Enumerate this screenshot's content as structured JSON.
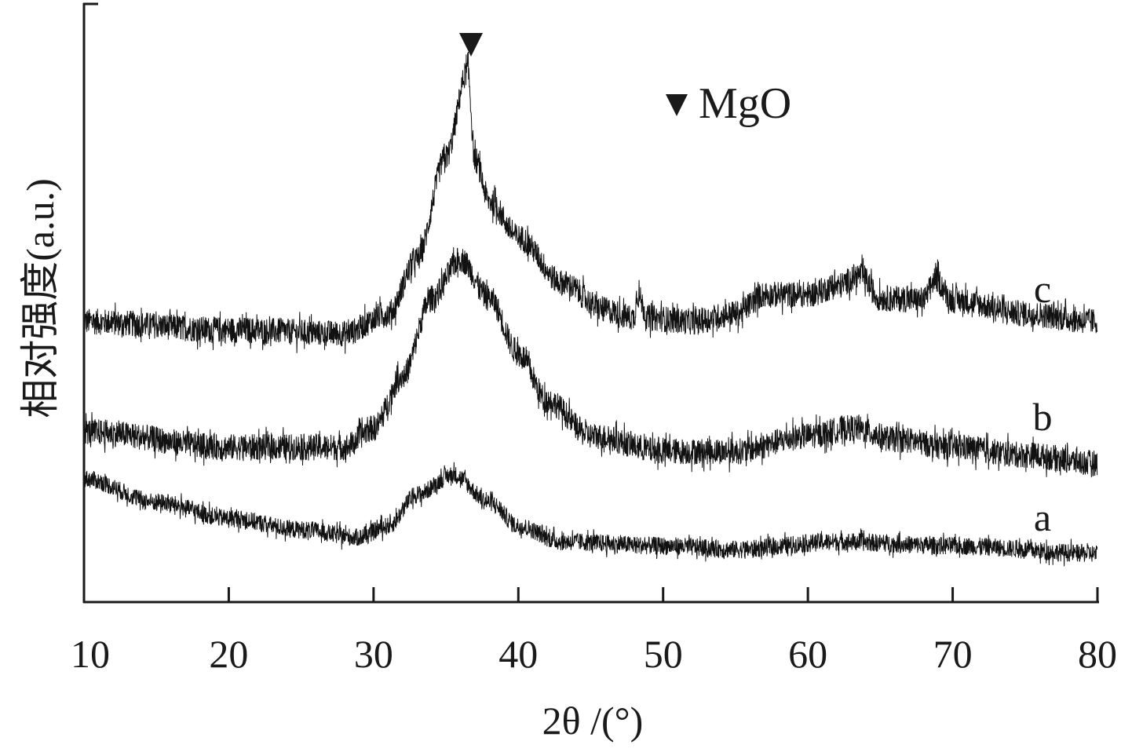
{
  "chart_data": {
    "type": "line",
    "title": "",
    "xlabel": "2θ /(°)",
    "ylabel": "相对强度(a.u.)",
    "xlim": [
      10,
      80
    ],
    "ylim": [
      0,
      100
    ],
    "x_ticks": [
      "10",
      "20",
      "30",
      "40",
      "50",
      "60",
      "70",
      "80"
    ],
    "grid": false,
    "legend": {
      "marker": "▼",
      "label": "MgO",
      "placement": "top-right"
    },
    "annotations": [
      {
        "marker": "▼",
        "x": 36.9,
        "label": "MgO peak"
      }
    ],
    "series": [
      {
        "name": "c",
        "noise": 2.2,
        "x": [
          10,
          20,
          28,
          31,
          33,
          35,
          36.5,
          37,
          38,
          40,
          43,
          46,
          48,
          48.2,
          49,
          52,
          55,
          57,
          60,
          62,
          63.6,
          65,
          68,
          68.8,
          70,
          75,
          80
        ],
        "y": [
          46.9,
          45.5,
          44.9,
          48.2,
          57.3,
          74.4,
          88.8,
          74,
          67,
          61,
          53.4,
          48.8,
          47.5,
          51.4,
          47.5,
          46.9,
          48.2,
          51.4,
          51.4,
          52.8,
          54.7,
          50.8,
          50.5,
          54,
          50.5,
          48.2,
          46.9
        ]
      },
      {
        "name": "b",
        "noise": 2.2,
        "x": [
          10,
          20,
          28,
          30,
          32,
          34,
          36,
          38,
          40,
          42,
          45,
          50,
          55,
          60,
          63,
          66,
          70,
          75,
          80
        ],
        "y": [
          28.5,
          25.9,
          25.9,
          29.1,
          37.7,
          50.8,
          57.3,
          50.8,
          41.6,
          33.7,
          27.8,
          25.2,
          25.2,
          27.8,
          29.1,
          27.2,
          25.9,
          24.6,
          23.2
        ]
      },
      {
        "name": "a",
        "noise": 1.5,
        "x": [
          10,
          15,
          20,
          25,
          29,
          31,
          33,
          35.5,
          38,
          40,
          43,
          50,
          55,
          62,
          70,
          80
        ],
        "y": [
          20.6,
          16.7,
          14.0,
          12.1,
          10.8,
          12.7,
          18.0,
          21.3,
          16.7,
          12.7,
          10.1,
          9.4,
          8.8,
          10.1,
          9.4,
          8.1
        ]
      }
    ]
  }
}
